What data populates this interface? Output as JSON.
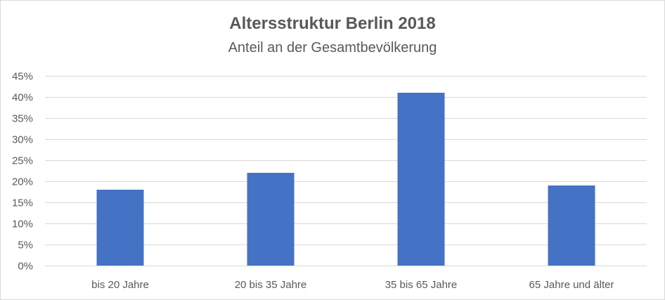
{
  "chart_data": {
    "type": "bar",
    "title": "Altersstruktur Berlin 2018",
    "subtitle": "Anteil an der Gesamtbevölkerung",
    "categories": [
      "bis 20 Jahre",
      "20 bis 35 Jahre",
      "35 bis 65 Jahre",
      "65 Jahre und älter"
    ],
    "values": [
      0.18,
      0.22,
      0.41,
      0.19
    ],
    "ylim": [
      0,
      0.45
    ],
    "yticks": [
      0,
      0.05,
      0.1,
      0.15,
      0.2,
      0.25,
      0.3,
      0.35,
      0.4,
      0.45
    ],
    "ytick_labels": [
      "0%",
      "5%",
      "10%",
      "15%",
      "20%",
      "25%",
      "30%",
      "35%",
      "40%",
      "45%"
    ],
    "grid": true,
    "bar_color": "#4472c4",
    "grid_color": "#d9d9d9"
  }
}
